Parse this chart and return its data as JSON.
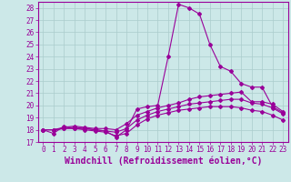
{
  "title": "",
  "xlabel": "Windchill (Refroidissement éolien,°C)",
  "ylabel": "",
  "xlim": [
    -0.5,
    23.5
  ],
  "ylim": [
    17,
    28.5
  ],
  "xticks": [
    0,
    1,
    2,
    3,
    4,
    5,
    6,
    7,
    8,
    9,
    10,
    11,
    12,
    13,
    14,
    15,
    16,
    17,
    18,
    19,
    20,
    21,
    22,
    23
  ],
  "yticks": [
    17,
    18,
    19,
    20,
    21,
    22,
    23,
    24,
    25,
    26,
    27,
    28
  ],
  "background_color": "#cce8e8",
  "line_color": "#990099",
  "grid_color": "#aacccc",
  "lines": [
    [
      18.0,
      17.7,
      18.3,
      18.1,
      18.1,
      18.0,
      17.9,
      17.4,
      18.0,
      19.7,
      19.9,
      20.0,
      24.0,
      28.3,
      28.0,
      27.5,
      25.0,
      23.2,
      22.8,
      21.8,
      21.5,
      21.5,
      19.9,
      19.4
    ],
    [
      18.0,
      18.0,
      18.2,
      18.3,
      18.2,
      18.1,
      18.1,
      18.0,
      18.5,
      19.2,
      19.5,
      19.8,
      20.0,
      20.2,
      20.5,
      20.7,
      20.8,
      20.9,
      21.0,
      21.1,
      20.3,
      20.3,
      20.1,
      19.5
    ],
    [
      18.0,
      18.0,
      18.1,
      18.2,
      18.1,
      18.0,
      17.9,
      17.8,
      18.1,
      18.8,
      19.2,
      19.5,
      19.7,
      19.9,
      20.1,
      20.2,
      20.3,
      20.4,
      20.5,
      20.5,
      20.2,
      20.1,
      19.8,
      19.3
    ],
    [
      18.0,
      18.0,
      18.1,
      18.1,
      18.0,
      17.9,
      17.8,
      17.5,
      17.7,
      18.4,
      18.9,
      19.2,
      19.4,
      19.6,
      19.7,
      19.8,
      19.9,
      19.9,
      19.9,
      19.8,
      19.6,
      19.5,
      19.2,
      18.8
    ]
  ],
  "font_family": "monospace",
  "tick_fontsize": 5.5,
  "label_fontsize": 7.0,
  "marker": "D",
  "markersize": 2.0,
  "linewidth": 0.8
}
